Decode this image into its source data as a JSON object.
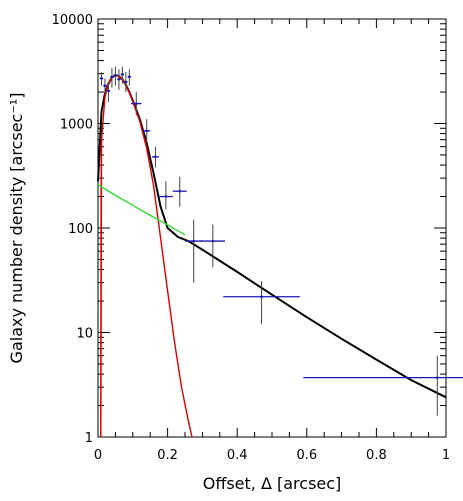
{
  "chart_data": {
    "type": "scatter",
    "xlabel": "Offset, Δ [arcsec]",
    "ylabel": "Galaxy number density [arcsec⁻¹]",
    "xlim": [
      0,
      1
    ],
    "ylim": [
      1,
      10000
    ],
    "yscale": "log",
    "x_ticks": [
      0,
      0.2,
      0.4,
      0.6,
      0.8,
      1
    ],
    "x_tick_labels": [
      "0",
      "0.2",
      "0.4",
      "0.6",
      "0.8",
      "1"
    ],
    "y_ticks": [
      1,
      10,
      100,
      1000,
      10000
    ],
    "y_tick_labels": [
      "1",
      "10",
      "100",
      "1000",
      "10000"
    ],
    "grid": false,
    "colors": {
      "total_model": "#000000",
      "core_component": "#dd0000",
      "tail_component": "#33dd33",
      "data_points": "#1a1ab0",
      "error_bars": "#444444"
    },
    "series": [
      {
        "style": "curve",
        "color": "#000000",
        "x": [
          0,
          0.01,
          0.02,
          0.03,
          0.04,
          0.05,
          0.06,
          0.07,
          0.08,
          0.09,
          0.1,
          0.12,
          0.14,
          0.16,
          0.18,
          0.2,
          0.23,
          0.26,
          0.3,
          0.4,
          0.5,
          0.6,
          0.7,
          0.8,
          0.9,
          1.0
        ],
        "y": [
          280,
          1300,
          1950,
          2400,
          2750,
          2900,
          2850,
          2650,
          2350,
          2000,
          1650,
          1100,
          650,
          330,
          160,
          100,
          82,
          75,
          62,
          38,
          23,
          14,
          8.7,
          5.5,
          3.5,
          2.4
        ]
      },
      {
        "style": "curve",
        "color": "#dd0000",
        "x": [
          0.008,
          0.01,
          0.02,
          0.03,
          0.04,
          0.05,
          0.06,
          0.07,
          0.08,
          0.09,
          0.1,
          0.12,
          0.14,
          0.16,
          0.18,
          0.2,
          0.22,
          0.24,
          0.26,
          0.27
        ],
        "y": [
          1,
          700,
          1800,
          2400,
          2750,
          2900,
          2850,
          2650,
          2350,
          1980,
          1620,
          1050,
          580,
          250,
          80,
          25,
          8,
          3,
          1.4,
          1
        ]
      },
      {
        "style": "curve",
        "color": "#dd0000",
        "x": [
          0.008,
          0.0085,
          0.009,
          0.0095,
          0.01
        ],
        "y": [
          1,
          30,
          200,
          450,
          700
        ]
      },
      {
        "style": "curve",
        "color": "#33dd33",
        "x": [
          0,
          0.05,
          0.1,
          0.15,
          0.2,
          0.25
        ],
        "y": [
          260,
          205,
          165,
          132,
          107,
          86
        ]
      },
      {
        "style": "points",
        "color": "#1a1ab0",
        "points": [
          {
            "x": 0.01,
            "y": 2700,
            "xerr": 0.005,
            "ylo": 2300,
            "yhi": 3100
          },
          {
            "x": 0.02,
            "y": 2300,
            "xerr": 0.005,
            "ylo": 1900,
            "yhi": 2700
          },
          {
            "x": 0.03,
            "y": 2050,
            "xerr": 0.005,
            "ylo": 1600,
            "yhi": 2500
          },
          {
            "x": 0.04,
            "y": 2800,
            "xerr": 0.005,
            "ylo": 2200,
            "yhi": 3400
          },
          {
            "x": 0.05,
            "y": 2900,
            "xerr": 0.005,
            "ylo": 2300,
            "yhi": 3500
          },
          {
            "x": 0.06,
            "y": 2650,
            "xerr": 0.005,
            "ylo": 2100,
            "yhi": 3300
          },
          {
            "x": 0.07,
            "y": 2950,
            "xerr": 0.005,
            "ylo": 2400,
            "yhi": 3500
          },
          {
            "x": 0.08,
            "y": 2500,
            "xerr": 0.005,
            "ylo": 2000,
            "yhi": 3100
          },
          {
            "x": 0.09,
            "y": 2800,
            "xerr": 0.005,
            "ylo": 2300,
            "yhi": 3300
          },
          {
            "x": 0.11,
            "y": 1550,
            "xerr": 0.015,
            "ylo": 1200,
            "yhi": 2000
          },
          {
            "x": 0.14,
            "y": 850,
            "xerr": 0.01,
            "ylo": 650,
            "yhi": 1100
          },
          {
            "x": 0.165,
            "y": 480,
            "xerr": 0.01,
            "ylo": 380,
            "yhi": 600
          },
          {
            "x": 0.195,
            "y": 200,
            "xerr": 0.02,
            "ylo": 150,
            "yhi": 280
          },
          {
            "x": 0.235,
            "y": 225,
            "xerr": 0.02,
            "ylo": 160,
            "yhi": 310
          },
          {
            "x": 0.275,
            "y": 75,
            "xerr": 0.025,
            "ylo": 30,
            "yhi": 120
          },
          {
            "x": 0.33,
            "y": 75,
            "xerr": 0.035,
            "ylo": 42,
            "yhi": 108
          },
          {
            "x": 0.47,
            "y": 22,
            "xerr": 0.11,
            "ylo": 12,
            "yhi": 31
          },
          {
            "x": 0.975,
            "y": 3.7,
            "xerr": 0.385,
            "ylo": 1.6,
            "yhi": 6
          }
        ]
      }
    ]
  }
}
